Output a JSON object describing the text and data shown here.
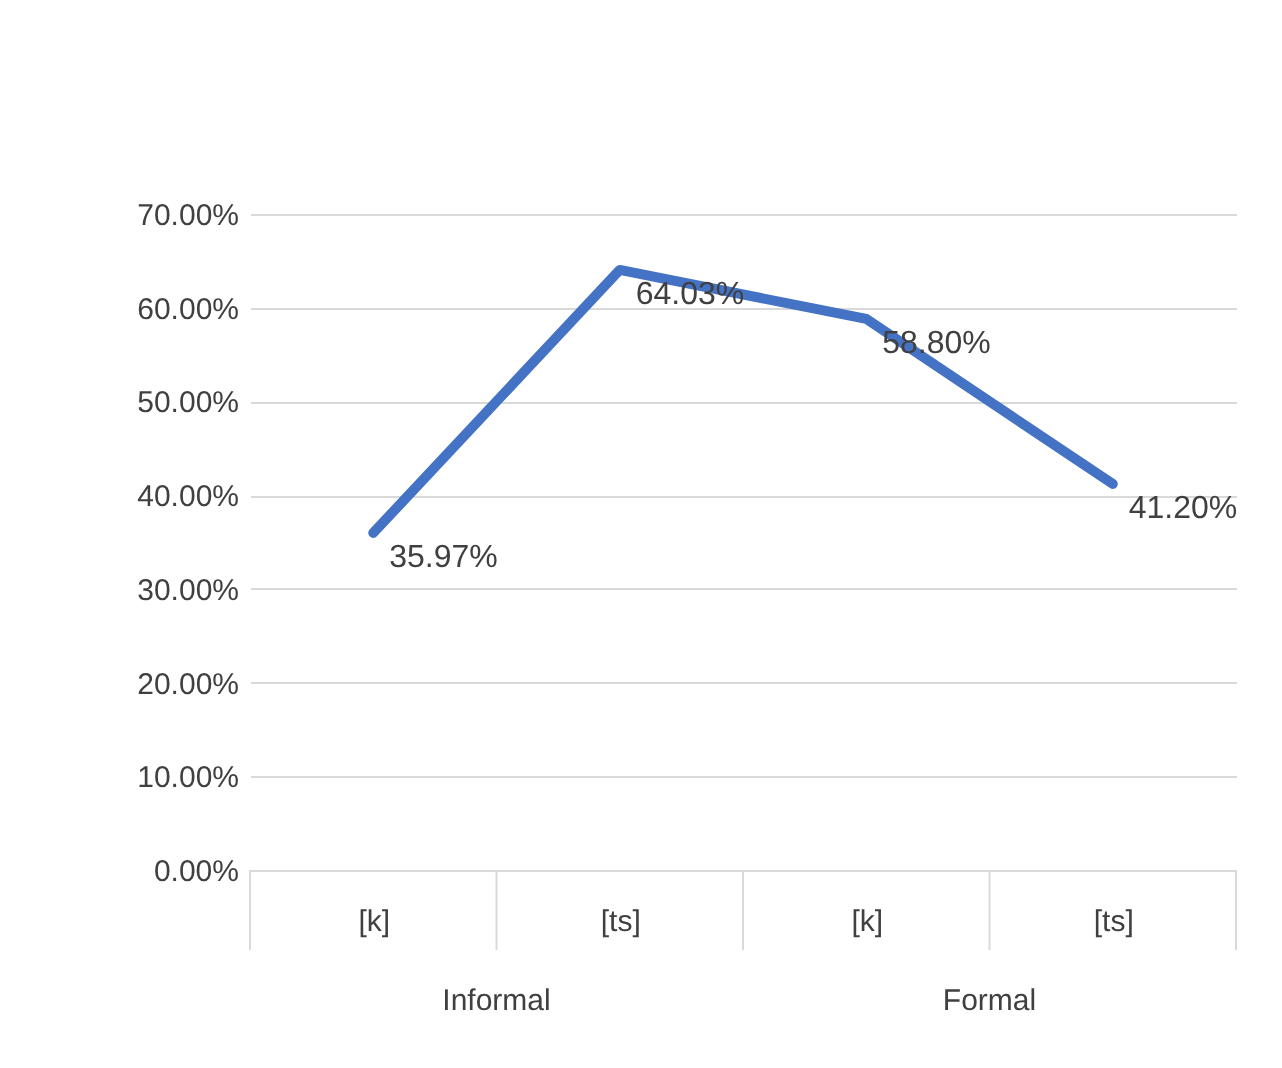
{
  "chart_data": {
    "type": "line",
    "categories": [
      "[k]",
      "[ts]",
      "[k]",
      "[ts]"
    ],
    "series": [
      {
        "color": "#4472c4",
        "values": [
          35.97,
          64.03,
          58.8,
          41.2
        ],
        "value_labels": [
          "35.97%",
          "64.03%",
          "58.80%",
          "41.20%"
        ]
      }
    ],
    "ylim": [
      0,
      70
    ],
    "yticks": [
      {
        "value": 0,
        "label": "0.00%"
      },
      {
        "value": 10,
        "label": "10.00%"
      },
      {
        "value": 20,
        "label": "20.00%"
      },
      {
        "value": 30,
        "label": "30.00%"
      },
      {
        "value": 40,
        "label": "40.00%"
      },
      {
        "value": 50,
        "label": "50.00%"
      },
      {
        "value": 60,
        "label": "60.00%"
      },
      {
        "value": 70,
        "label": "70.00%"
      }
    ],
    "annotations": [
      "Informal",
      "Formal"
    ],
    "grid": "y",
    "marker": "none",
    "line_style": "solid"
  }
}
